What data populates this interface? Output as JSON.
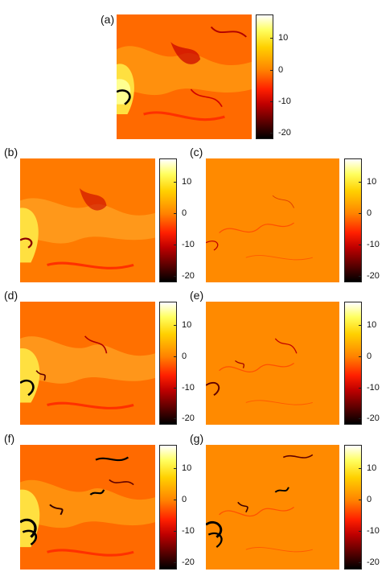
{
  "panels": [
    {
      "label": "(a)",
      "pattern": "full"
    },
    {
      "label": "(b)",
      "pattern": "full"
    },
    {
      "label": "(c)",
      "pattern": "fine"
    },
    {
      "label": "(d)",
      "pattern": "full"
    },
    {
      "label": "(e)",
      "pattern": "fine"
    },
    {
      "label": "(f)",
      "pattern": "full"
    },
    {
      "label": "(g)",
      "pattern": "fine"
    }
  ],
  "colorbar": {
    "ticks": [
      "10",
      "0",
      "-10",
      "-20"
    ],
    "colors": [
      "#ffffff",
      "#ffff60",
      "#ffd000",
      "#ff8000",
      "#ff2000",
      "#c00000",
      "#600000",
      "#000000"
    ]
  }
}
